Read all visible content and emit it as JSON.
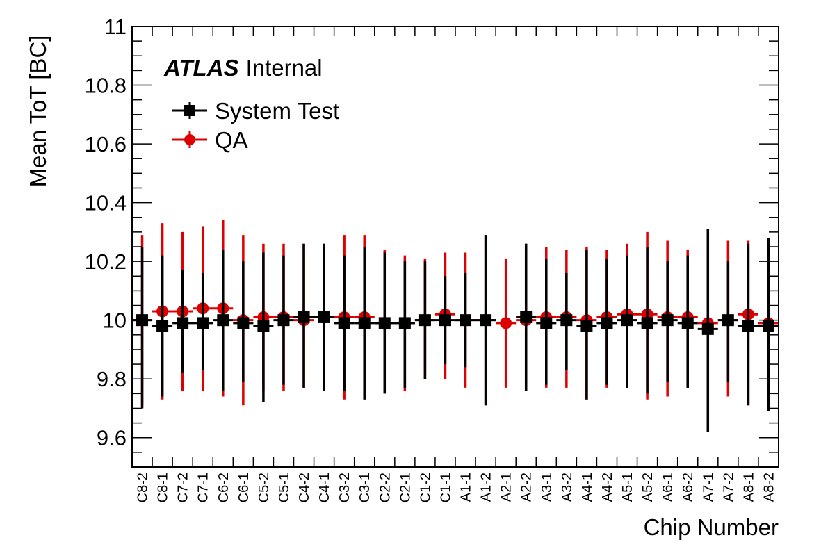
{
  "chart_data": {
    "type": "scatter",
    "ylabel": "Mean ToT [BC]",
    "xlabel": "Chip Number",
    "ylim": [
      9.5,
      11.0
    ],
    "yticks": [
      9.6,
      9.8,
      10,
      10.2,
      10.4,
      10.6,
      10.8,
      11
    ],
    "ytick_labels": [
      "9.6",
      "9.8",
      "10",
      "10.2",
      "10.4",
      "10.6",
      "10.8",
      "11"
    ],
    "categories": [
      "C8-2",
      "C8-1",
      "C7-2",
      "C7-1",
      "C6-2",
      "C6-1",
      "C5-2",
      "C5-1",
      "C4-2",
      "C4-1",
      "C3-2",
      "C3-1",
      "C2-2",
      "C2-1",
      "C1-2",
      "C1-1",
      "A1-1",
      "A1-2",
      "A2-1",
      "A2-2",
      "A3-1",
      "A3-2",
      "A4-1",
      "A4-2",
      "A5-1",
      "A5-2",
      "A6-1",
      "A6-2",
      "A7-1",
      "A7-2",
      "A8-1",
      "A8-2"
    ],
    "annotation": {
      "bold": "ATLAS",
      "rest": "Internal"
    },
    "legend_position": "top-left",
    "series": [
      {
        "name": "System Test",
        "color": "#000000",
        "marker": "square",
        "values": [
          10.0,
          9.98,
          9.99,
          9.99,
          10.0,
          9.99,
          9.98,
          10.0,
          10.01,
          10.01,
          9.99,
          9.99,
          9.99,
          9.99,
          10.0,
          10.0,
          10.0,
          10.0,
          null,
          10.01,
          9.99,
          10.0,
          9.98,
          9.99,
          10.0,
          9.99,
          10.0,
          9.99,
          9.97,
          10.0,
          9.98,
          9.98
        ],
        "err_low": [
          9.7,
          9.74,
          9.82,
          9.83,
          9.76,
          9.79,
          9.72,
          9.78,
          9.77,
          9.76,
          9.76,
          9.73,
          9.75,
          9.77,
          9.8,
          9.85,
          9.84,
          9.71,
          null,
          9.76,
          9.78,
          9.83,
          9.73,
          9.78,
          9.77,
          9.75,
          9.79,
          9.77,
          9.62,
          9.79,
          9.71,
          9.69
        ],
        "err_high": [
          10.25,
          10.22,
          10.17,
          10.16,
          10.24,
          10.2,
          10.23,
          10.22,
          10.26,
          10.26,
          10.22,
          10.25,
          10.23,
          10.2,
          10.2,
          10.15,
          10.16,
          10.29,
          null,
          10.26,
          10.21,
          10.16,
          10.24,
          10.21,
          10.22,
          10.25,
          10.2,
          10.22,
          10.31,
          10.2,
          10.26,
          10.28
        ]
      },
      {
        "name": "QA",
        "color": "#dd0000",
        "marker": "circle",
        "values": [
          10.0,
          10.03,
          10.03,
          10.04,
          10.04,
          10.0,
          10.01,
          10.01,
          10.0,
          10.01,
          10.01,
          10.01,
          9.99,
          9.99,
          10.0,
          10.02,
          10.0,
          10.0,
          9.99,
          10.0,
          10.01,
          10.01,
          10.0,
          10.01,
          10.02,
          10.02,
          10.01,
          10.01,
          9.99,
          10.0,
          10.02,
          9.99
        ],
        "err_low": [
          9.71,
          9.73,
          9.76,
          9.76,
          9.74,
          9.71,
          9.76,
          9.76,
          9.77,
          9.76,
          9.73,
          9.73,
          9.75,
          9.76,
          9.8,
          9.8,
          9.77,
          9.71,
          9.77,
          9.76,
          9.77,
          9.77,
          9.73,
          9.77,
          9.77,
          9.73,
          9.74,
          9.77,
          9.62,
          9.74,
          9.71,
          9.7
        ],
        "err_high": [
          10.29,
          10.33,
          10.3,
          10.32,
          10.34,
          10.29,
          10.26,
          10.26,
          10.26,
          10.26,
          10.29,
          10.29,
          10.24,
          10.22,
          10.21,
          10.23,
          10.23,
          10.29,
          10.21,
          10.26,
          10.25,
          10.24,
          10.25,
          10.24,
          10.26,
          10.3,
          10.27,
          10.24,
          10.31,
          10.27,
          10.27,
          10.28
        ]
      }
    ]
  }
}
